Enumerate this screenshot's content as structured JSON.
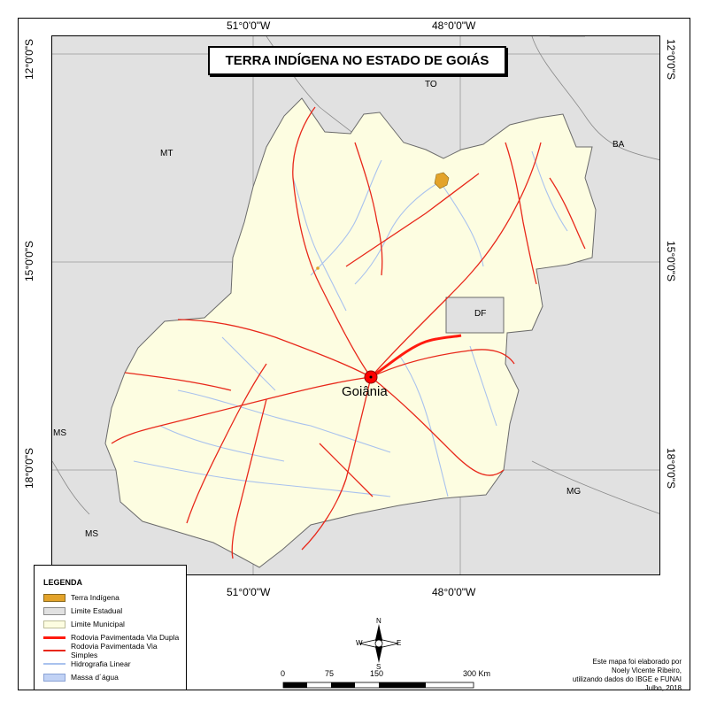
{
  "map": {
    "title": "TERRA INDÍGENA NO ESTADO DE GOIÁS",
    "coords": {
      "top_left": "51°0'0\"W",
      "top_right": "48°0'0\"W",
      "bottom_left": "51°0'0\"W",
      "bottom_right": "48°0'0\"W",
      "left_1": "12°0'0\"S",
      "left_2": "15°0'0\"S",
      "left_3": "18°0'0\"S",
      "right_1": "12°0'0\"S",
      "right_2": "15°0'0\"S",
      "right_3": "18°0'0\"S"
    },
    "states": {
      "to": "TO",
      "mt": "MT",
      "ba": "BA",
      "df": "DF",
      "ms_left": "MS",
      "ms_bottom": "MS",
      "mg": "MG"
    },
    "capital": "Goiânia"
  },
  "legend": {
    "title": "LEGENDA",
    "items": [
      {
        "label": "Terra Indígena",
        "color": "#e3a32a"
      },
      {
        "label": "Limite Estadual",
        "color": "#e1e1e1"
      },
      {
        "label": "Limite Municipal",
        "color": "#fdfde1"
      },
      {
        "label": "Rodovia Pavimentada Via Dupla",
        "color": "#ff1a0f"
      },
      {
        "label": "Rodovia Pavimentada Via Simples",
        "color": "#e8281a"
      },
      {
        "label": "Hidrografia Linear",
        "color": "#a9c2ee"
      },
      {
        "label": "Massa d´água",
        "color": "#c1d2f5"
      }
    ]
  },
  "north_arrow": {
    "n": "N",
    "s": "S",
    "e": "E",
    "w": "W"
  },
  "scale": {
    "labels": [
      "0",
      "75",
      "150",
      "300 Km"
    ]
  },
  "credits": {
    "line1": "Este mapa foi elaborado por",
    "line2": "Noely Vicente Ribeiro,",
    "line3": "utilizando dados do IBGE e FUNAI",
    "line4": "Julho, 2018"
  }
}
